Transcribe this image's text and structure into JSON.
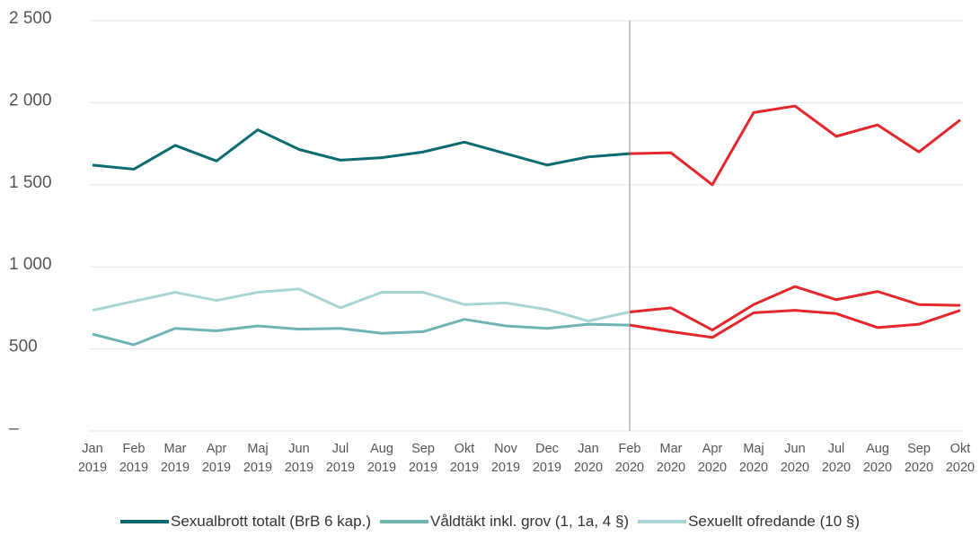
{
  "chart_data": {
    "type": "line",
    "categories": [
      "Jan 2019",
      "Feb 2019",
      "Mar 2019",
      "Apr 2019",
      "Maj 2019",
      "Jun 2019",
      "Jul 2019",
      "Aug 2019",
      "Sep 2019",
      "Okt 2019",
      "Nov 2019",
      "Dec 2019",
      "Jan 2020",
      "Feb 2020",
      "Mar 2020",
      "Apr 2020",
      "Maj 2020",
      "Jun 2020",
      "Jul 2020",
      "Aug 2020",
      "Sep 2020",
      "Okt 2020"
    ],
    "series": [
      {
        "name": "Sexualbrott totalt (BrB 6 kap.)",
        "color": "#0b6b70",
        "values": [
          1620,
          1595,
          1740,
          1645,
          1835,
          1715,
          1650,
          1665,
          1700,
          1760,
          1690,
          1620,
          1670,
          1690,
          1695,
          1500,
          1940,
          1980,
          1795,
          1865,
          1700,
          1895
        ]
      },
      {
        "name": "Våldtäkt inkl. grov (1, 1a, 4 §)",
        "color": "#6fb3b3",
        "values": [
          590,
          525,
          625,
          610,
          640,
          620,
          625,
          595,
          605,
          680,
          640,
          625,
          650,
          645,
          605,
          570,
          720,
          735,
          715,
          630,
          650,
          735
        ]
      },
      {
        "name": "Sexuellt ofredande (10 §)",
        "color": "#a8d5d4",
        "values": [
          735,
          790,
          845,
          795,
          845,
          865,
          750,
          845,
          845,
          770,
          780,
          740,
          670,
          725,
          750,
          615,
          770,
          880,
          800,
          850,
          770,
          765
        ]
      }
    ],
    "highlight_start": 13,
    "highlight_color": "#e4262d",
    "ylim": [
      0,
      2500
    ],
    "yticks": [
      {
        "value": 0,
        "label": "–"
      },
      500,
      {
        "value": 1000,
        "label": "1 000"
      },
      {
        "value": 1500,
        "label": "1 500"
      },
      {
        "value": 2000,
        "label": "2 000"
      },
      {
        "value": 2500,
        "label": "2 500"
      }
    ],
    "grid": true,
    "legend": "bottom"
  }
}
